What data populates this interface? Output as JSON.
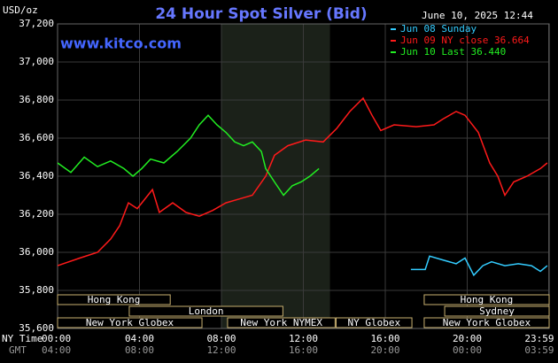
{
  "chart_data": {
    "type": "line",
    "title": "24 Hour Spot Silver (Bid)",
    "site": "www.kitco.com",
    "timestamp": "June 10, 2025 12:44",
    "y_unit": "USD/oz",
    "x_label": "NY Time",
    "x2_label": "GMT",
    "xlim": [
      0,
      24
    ],
    "xticks": [
      {
        "value": 0,
        "label": "00:00"
      },
      {
        "value": 4,
        "label": "04:00"
      },
      {
        "value": 8,
        "label": "08:00"
      },
      {
        "value": 12,
        "label": "12:00"
      },
      {
        "value": 16,
        "label": "16:00"
      },
      {
        "value": 20,
        "label": "20:00"
      },
      {
        "value": 23.98,
        "label": "23:59"
      }
    ],
    "gmt_ticks": [
      "04:00",
      "08:00",
      "12:00",
      "16:00",
      "20:00",
      "00:00",
      "03:59"
    ],
    "ylim": [
      35.6,
      37.2
    ],
    "yticks": [
      {
        "value": 35.6,
        "label": "35,600"
      },
      {
        "value": 35.8,
        "label": "35,800"
      },
      {
        "value": 36.0,
        "label": "36,000"
      },
      {
        "value": 36.2,
        "label": "36,200"
      },
      {
        "value": 36.4,
        "label": "36,400"
      },
      {
        "value": 36.6,
        "label": "36,600"
      },
      {
        "value": 36.8,
        "label": "36,800"
      },
      {
        "value": 37.0,
        "label": "37,000"
      },
      {
        "value": 37.2,
        "label": "37,200"
      }
    ],
    "grid": true,
    "shaded_range": [
      8,
      13.3
    ],
    "series": [
      {
        "name": "Jun 08 Sunday",
        "color": "#33ccff",
        "x": [
          17.25,
          17.95,
          18.16,
          18.81,
          19.46,
          19.89,
          20.32,
          20.76,
          21.19,
          21.84,
          22.49,
          23.14,
          23.57,
          23.91
        ],
        "values": [
          35.91,
          35.91,
          35.98,
          35.96,
          35.94,
          35.97,
          35.88,
          35.93,
          35.95,
          35.93,
          35.94,
          35.93,
          35.9,
          35.93
        ]
      },
      {
        "name": "Jun 09 NY close 36.664",
        "color": "#ff1a1a",
        "x": [
          0,
          1.08,
          1.95,
          2.59,
          3.03,
          3.46,
          3.89,
          4.63,
          4.97,
          5.62,
          6.27,
          6.92,
          7.57,
          8.22,
          8.86,
          9.51,
          10.16,
          10.59,
          11.24,
          12.11,
          12.97,
          13.62,
          14.27,
          14.92,
          15.35,
          15.78,
          16.43,
          17.51,
          18.38,
          18.81,
          19.46,
          19.89,
          20.54,
          21.1,
          21.49,
          21.84,
          22.27,
          22.92,
          23.57,
          23.91
        ],
        "values": [
          35.93,
          35.97,
          36.0,
          36.07,
          36.14,
          36.26,
          36.23,
          36.33,
          36.21,
          36.26,
          36.21,
          36.19,
          36.22,
          36.26,
          36.28,
          36.3,
          36.4,
          36.51,
          36.56,
          36.59,
          36.58,
          36.65,
          36.74,
          36.81,
          36.72,
          36.64,
          36.67,
          36.66,
          36.67,
          36.7,
          36.74,
          36.72,
          36.63,
          36.47,
          36.4,
          36.3,
          36.37,
          36.4,
          36.44,
          36.47
        ]
      },
      {
        "name": "Jun 10 Last 36.440",
        "color": "#22ee22",
        "x": [
          0,
          0.65,
          1.3,
          1.95,
          2.59,
          3.24,
          3.68,
          4.11,
          4.54,
          5.19,
          5.84,
          6.49,
          6.92,
          7.35,
          7.78,
          8.22,
          8.65,
          9.08,
          9.51,
          9.95,
          10.16,
          10.59,
          11.03,
          11.46,
          11.89,
          12.32,
          12.76
        ],
        "values": [
          36.47,
          36.42,
          36.5,
          36.45,
          36.48,
          36.44,
          36.4,
          36.44,
          36.49,
          36.47,
          36.53,
          36.6,
          36.67,
          36.72,
          36.67,
          36.63,
          36.58,
          36.56,
          36.58,
          36.53,
          36.44,
          36.37,
          36.3,
          36.35,
          36.37,
          36.4,
          36.44
        ]
      }
    ],
    "sessions": [
      [
        {
          "label": "Hong Kong",
          "start": 0,
          "end": 5.5
        },
        {
          "label": "Hong Kong",
          "start": 17.9,
          "end": 24
        }
      ],
      [
        {
          "label": "London",
          "start": 3.5,
          "end": 11
        },
        {
          "label": "Sydney",
          "start": 18.9,
          "end": 24
        }
      ],
      [
        {
          "label": "New York Globex",
          "start": 0,
          "end": 7.05
        },
        {
          "label": "New York NYMEX",
          "start": 8.3,
          "end": 13.55
        },
        {
          "label": "NY Globex",
          "start": 13.6,
          "end": 17.3
        },
        {
          "label": "New York Globex",
          "start": 17.9,
          "end": 24
        }
      ]
    ]
  }
}
